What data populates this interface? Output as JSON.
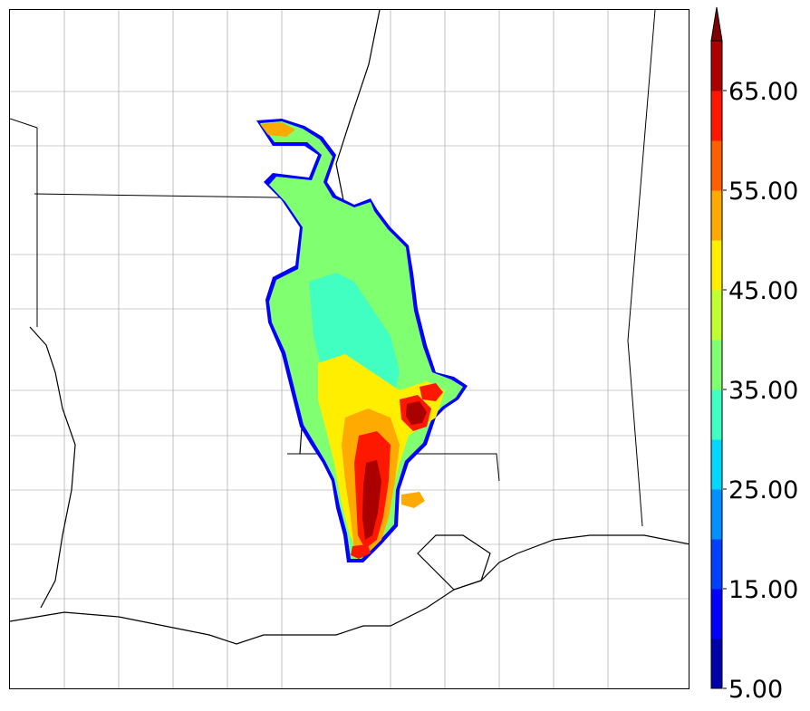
{
  "colorbar": {
    "ticks": [
      "5.00",
      "15.00",
      "25.00",
      "35.00",
      "45.00",
      "55.00",
      "65.00"
    ],
    "bins": [
      5,
      10,
      15,
      20,
      25,
      30,
      35,
      40,
      45,
      50,
      55,
      60,
      65,
      70
    ],
    "colors": [
      "#0000aa",
      "#0000ff",
      "#0040ff",
      "#0090ff",
      "#00d8ff",
      "#40ffc0",
      "#80ff70",
      "#c0ff30",
      "#ffee00",
      "#ffaa00",
      "#ff6000",
      "#ff1800",
      "#aa0000"
    ],
    "extend_color": "#7f0000",
    "extend": "max"
  },
  "map": {
    "field_colors": {
      "edge": "#0000ff",
      "low": "#80ff70",
      "mid": "#40ffc0",
      "yellow": "#ffee00",
      "orange": "#ffaa00",
      "red": "#ff1800",
      "darkred": "#aa0000",
      "darkest": "#7f0000"
    },
    "line_colors": {
      "state": "#000000",
      "county": "#9a9a9a",
      "river": "#000000"
    }
  }
}
